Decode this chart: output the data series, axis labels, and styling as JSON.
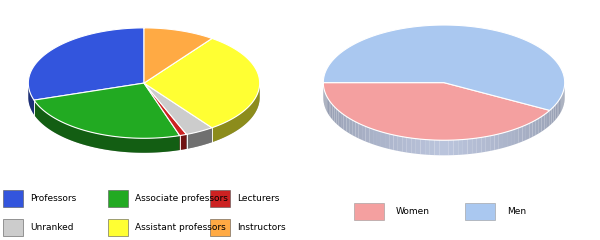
{
  "chart1": {
    "labels": [
      "Professors",
      "Associate professors",
      "Lecturers",
      "Unranked",
      "Assistant professors",
      "Instructors"
    ],
    "values": [
      30,
      25,
      1,
      4,
      30,
      10
    ],
    "colors": [
      "#3355dd",
      "#22aa22",
      "#cc2222",
      "#cccccc",
      "#ffff33",
      "#ffaa44"
    ],
    "start_angle": 90
  },
  "chart2": {
    "labels": [
      "Women",
      "Men"
    ],
    "values": [
      42,
      58
    ],
    "colors": [
      "#f4a0a0",
      "#aac8f0"
    ],
    "start_angle": 180
  },
  "legend1": {
    "entries": [
      {
        "label": "Professors",
        "color": "#3355dd"
      },
      {
        "label": "Associate professors",
        "color": "#22aa22"
      },
      {
        "label": "Lecturers",
        "color": "#cc2222"
      },
      {
        "label": "Unranked",
        "color": "#cccccc"
      },
      {
        "label": "Assistant professors",
        "color": "#ffff33"
      },
      {
        "label": "Instructors",
        "color": "#ffaa44"
      }
    ]
  },
  "legend2": {
    "entries": [
      {
        "label": "Women",
        "color": "#f4a0a0"
      },
      {
        "label": "Men",
        "color": "#aac8f0"
      }
    ]
  },
  "figsize": [
    6.0,
    2.4
  ],
  "dpi": 100
}
